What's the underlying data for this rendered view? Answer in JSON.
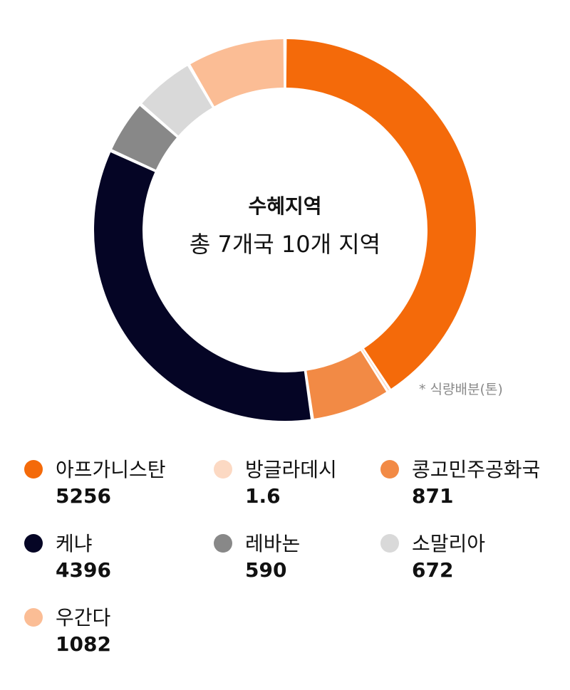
{
  "chart_data": {
    "type": "pie",
    "title": "수혜지역",
    "subtitle": "총 7개국 10개 지역",
    "unit_note": "* 식량배분(톤)",
    "categories": [
      "아프가니스탄",
      "방글라데시",
      "콩고민주공화국",
      "케냐",
      "레바논",
      "소말리아",
      "우간다"
    ],
    "values": [
      5256,
      1.6,
      871,
      4396,
      590,
      672,
      1082
    ],
    "colors": [
      "#f46a0a",
      "#fcd9c3",
      "#f28a45",
      "#050525",
      "#888888",
      "#d9d9d9",
      "#fbbd95"
    ],
    "legend_placement": "bottom"
  }
}
